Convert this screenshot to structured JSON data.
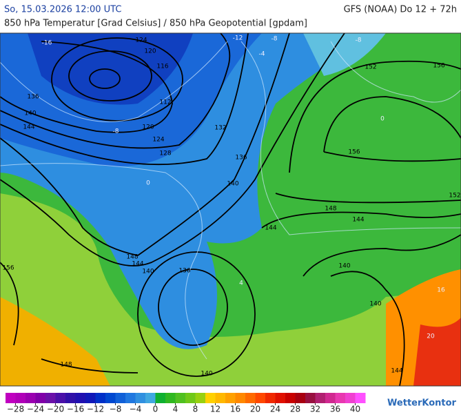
{
  "header": {
    "left": "So, 15.03.2026 12:00 UTC",
    "right": "GFS (NOAA) Do 12 + 72h",
    "subtitle": "850 hPa Temperatur [Grad Celsius] / 850 hPa Geopotential [gpdam]"
  },
  "map": {
    "geopotential_labels": [
      124,
      120,
      116,
      112,
      120,
      124,
      128,
      132,
      136,
      140,
      136,
      140,
      144,
      148,
      144,
      144,
      152,
      156,
      156,
      152,
      156,
      148,
      144,
      140,
      136,
      140,
      140,
      148,
      140,
      144
    ],
    "temperature_labels": [
      -16,
      -12,
      -8,
      -8,
      -4,
      -8,
      0,
      0,
      4,
      16,
      20
    ]
  },
  "legend": {
    "lim": [
      -30,
      42
    ],
    "ticks": [
      {
        "value": -28,
        "label": "−28"
      },
      {
        "value": -24,
        "label": "−24"
      },
      {
        "value": -20,
        "label": "−20"
      },
      {
        "value": -16,
        "label": "−16"
      },
      {
        "value": -12,
        "label": "−12"
      },
      {
        "value": -8,
        "label": "−8"
      },
      {
        "value": -4,
        "label": "−4"
      },
      0,
      4,
      8,
      12,
      16,
      20,
      24,
      28,
      32,
      36,
      40
    ],
    "colors": [
      "#c000c0",
      "#b000b8",
      "#9a00b0",
      "#8000a8",
      "#6a10a8",
      "#4a10a8",
      "#3010a8",
      "#2010b0",
      "#1018b8",
      "#0030c8",
      "#0048d0",
      "#1060d8",
      "#2078e0",
      "#3090e0",
      "#40a8e0",
      "#10b030",
      "#30b820",
      "#50c020",
      "#70c818",
      "#98d010",
      "#ffd000",
      "#ffb800",
      "#ffa000",
      "#ff8800",
      "#ff6a00",
      "#ff4800",
      "#f02800",
      "#e01000",
      "#c80000",
      "#a80010",
      "#981040",
      "#b02070",
      "#d02890",
      "#e838b0",
      "#f040d0",
      "#ff50ff"
    ]
  },
  "brand": "WetterKontor"
}
